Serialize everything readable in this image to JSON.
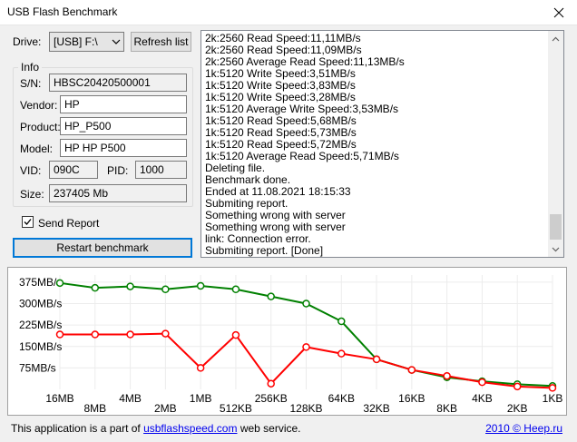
{
  "window": {
    "title": "USB Flash Benchmark"
  },
  "drive": {
    "label": "Drive:",
    "value": "[USB] F:\\"
  },
  "refresh_label": "Refresh list",
  "info": {
    "title": "Info",
    "sn_label": "S/N:",
    "sn": "HBSC20420500001",
    "vendor_label": "Vendor:",
    "vendor": "HP",
    "product_label": "Product:",
    "product": "HP_P500",
    "model_label": "Model:",
    "model": "HP HP P500",
    "vid_label": "VID:",
    "vid": "090C",
    "pid_label": "PID:",
    "pid": "1000",
    "size_label": "Size:",
    "size": "237405 Mb"
  },
  "send_report_label": "Send Report",
  "send_report_checked": true,
  "restart_label": "Restart benchmark",
  "log": [
    "2k:2560 Read Speed:11,11MB/s",
    "2k:2560 Read Speed:11,09MB/s",
    "2k:2560 Average Read Speed:11,13MB/s",
    "1k:5120 Write Speed:3,51MB/s",
    "1k:5120 Write Speed:3,83MB/s",
    "1k:5120 Write Speed:3,28MB/s",
    "1k:5120 Average Write Speed:3,53MB/s",
    "1k:5120 Read Speed:5,68MB/s",
    "1k:5120 Read Speed:5,73MB/s",
    "1k:5120 Read Speed:5,72MB/s",
    "1k:5120 Average Read Speed:5,71MB/s",
    "Deleting file.",
    "Benchmark done.",
    "Ended at 11.08.2021 18:15:33",
    "Submiting report.",
    "Something wrong with server",
    "Something wrong with server",
    "link: Connection error.",
    "Submiting report. [Done]"
  ],
  "chart_data": {
    "type": "line",
    "categories": [
      "16MB",
      "8MB",
      "4MB",
      "2MB",
      "1MB",
      "512KB",
      "256KB",
      "128KB",
      "64KB",
      "32KB",
      "16KB",
      "8KB",
      "4KB",
      "2KB",
      "1KB"
    ],
    "ytick_labels": [
      "375MB/s",
      "300MB/s",
      "225MB/s",
      "150MB/s",
      "75MB/s"
    ],
    "yticks": [
      375,
      300,
      225,
      150,
      75
    ],
    "ylim": [
      0,
      400
    ],
    "grid": true,
    "series": [
      {
        "color": "#008000",
        "values": [
          372,
          355,
          360,
          350,
          362,
          350,
          325,
          300,
          238,
          105,
          68,
          42,
          28,
          18,
          12
        ]
      },
      {
        "color": "#ff0000",
        "values": [
          192,
          192,
          192,
          195,
          75,
          190,
          20,
          148,
          125,
          105,
          68,
          47,
          25,
          10,
          5
        ]
      }
    ]
  },
  "footer": {
    "prefix": "This application is a part of ",
    "link": "usbflashspeed.com",
    "suffix": " web service.",
    "copyright": "2010 © Heep.ru"
  }
}
